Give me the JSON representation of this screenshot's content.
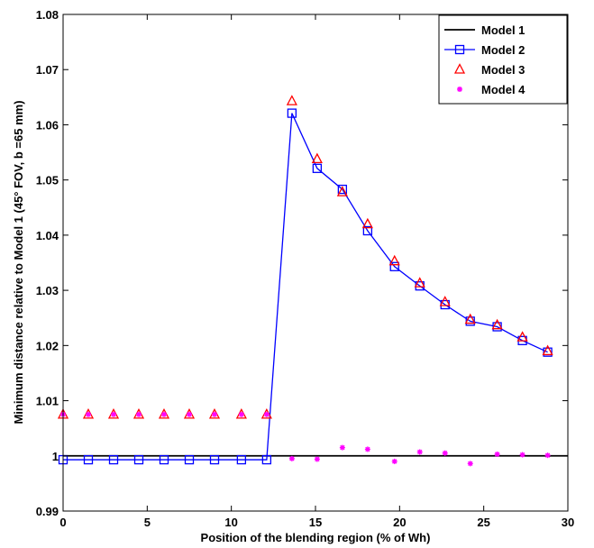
{
  "chart_data": {
    "type": "line",
    "title": "",
    "xlabel": "Position of the blending region (% of Wh)",
    "ylabel": "Minimum distance relative to Model 1 (45° FOV, b =65 mm)",
    "xlim": [
      0,
      30
    ],
    "ylim": [
      0.99,
      1.08
    ],
    "xticks": [
      0,
      5,
      10,
      15,
      20,
      25,
      30
    ],
    "xtick_labels": [
      "0",
      "5",
      "10",
      "15",
      "20",
      "25",
      "30"
    ],
    "yticks": [
      0.99,
      1.0,
      1.01,
      1.02,
      1.03,
      1.04,
      1.05,
      1.06,
      1.07,
      1.08
    ],
    "ytick_labels": [
      "0.99",
      "1",
      "1.01",
      "1.02",
      "1.03",
      "1.04",
      "1.05",
      "1.06",
      "1.07",
      "1.08"
    ],
    "grid": false,
    "legend_position": "top-right",
    "x": [
      0,
      1.5,
      3.0,
      4.5,
      6.0,
      7.5,
      9.0,
      10.6,
      12.1,
      13.6,
      15.1,
      16.6,
      18.1,
      19.7,
      21.2,
      22.7,
      24.2,
      25.8,
      27.3,
      28.8
    ],
    "series": [
      {
        "name": "Model 1",
        "style": "line",
        "color": "#000000",
        "x": [
          0,
          30
        ],
        "values": [
          1.0,
          1.0
        ]
      },
      {
        "name": "Model 2",
        "style": "line-square",
        "color": "#0000ff",
        "values": [
          0.9993,
          0.9993,
          0.9993,
          0.9993,
          0.9993,
          0.9993,
          0.9993,
          0.9993,
          0.9993,
          1.0621,
          1.0521,
          1.0483,
          1.0408,
          1.0343,
          1.0308,
          1.0274,
          1.0244,
          1.0234,
          1.0209,
          1.0188
        ]
      },
      {
        "name": "Model 3",
        "style": "triangle",
        "color": "#ff0000",
        "values": [
          1.0075,
          1.0075,
          1.0075,
          1.0075,
          1.0075,
          1.0075,
          1.0075,
          1.0075,
          1.0075,
          1.0643,
          1.0538,
          1.0478,
          1.042,
          1.0353,
          1.0313,
          1.0279,
          1.0247,
          1.0237,
          1.0215,
          1.019
        ]
      },
      {
        "name": "Model 4",
        "style": "asterisk",
        "color": "#ff00ff",
        "values": [
          1.0075,
          1.0075,
          1.0075,
          1.0075,
          1.0075,
          1.0075,
          1.0075,
          1.0075,
          1.0075,
          0.9995,
          0.9994,
          1.0015,
          1.0012,
          0.999,
          1.0007,
          1.0005,
          0.9986,
          1.0003,
          1.0002,
          1.0001
        ]
      }
    ]
  }
}
